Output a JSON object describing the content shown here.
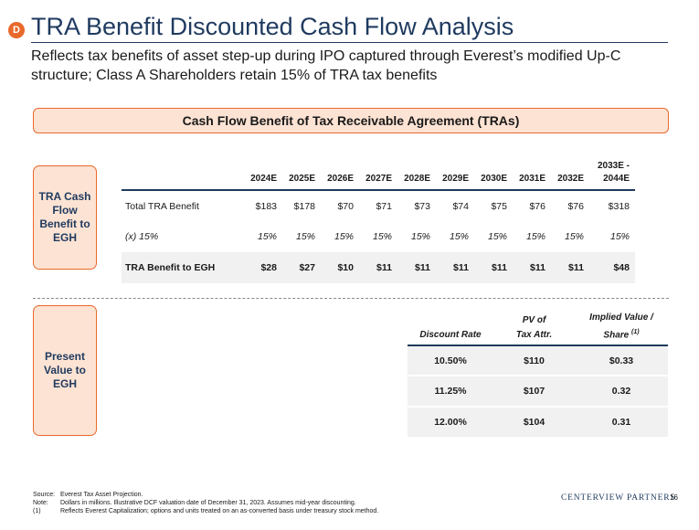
{
  "header": {
    "badge": "D",
    "title": "TRA Benefit Discounted Cash Flow Analysis",
    "subtitle": "Reflects tax benefits of asset step-up during IPO captured through Everest’s modified Up-C structure; Class A Shareholders retain 15% of TRA tax benefits"
  },
  "banner": "Cash Flow Benefit of Tax Receivable Agreement (TRAs)",
  "side_labels": {
    "tra": "TRA Cash Flow Benefit to EGH",
    "pv": "Present Value to EGH"
  },
  "tra_table": {
    "columns": [
      "2024E",
      "2025E",
      "2026E",
      "2027E",
      "2028E",
      "2029E",
      "2030E",
      "2031E",
      "2032E",
      "2033E - 2044E"
    ],
    "rows": [
      {
        "label": "Total TRA Benefit",
        "values": [
          "$183",
          "$178",
          "$70",
          "$71",
          "$73",
          "$74",
          "$75",
          "$76",
          "$76",
          "$318"
        ]
      },
      {
        "label": "(x) 15%",
        "values": [
          "15%",
          "15%",
          "15%",
          "15%",
          "15%",
          "15%",
          "15%",
          "15%",
          "15%",
          "15%"
        ]
      },
      {
        "label": "TRA Benefit to EGH",
        "values": [
          "$28",
          "$27",
          "$10",
          "$11",
          "$11",
          "$11",
          "$11",
          "$11",
          "$11",
          "$48"
        ]
      }
    ]
  },
  "pv_table": {
    "headers": {
      "discount_rate": "Discount Rate",
      "pv_line1": "PV of",
      "pv_line2": "Tax Attr.",
      "implied_line1": "Implied Value /",
      "implied_line2": "Share",
      "implied_sup": "(1)"
    },
    "rows": [
      {
        "rate": "10.50%",
        "pv": "$110",
        "implied": "$0.33"
      },
      {
        "rate": "11.25%",
        "pv": "$107",
        "implied": "0.32"
      },
      {
        "rate": "12.00%",
        "pv": "$104",
        "implied": "0.31"
      }
    ]
  },
  "footnotes": [
    {
      "key": "Source:",
      "text": "Everest Tax Asset Projection."
    },
    {
      "key": "Note:",
      "text": "Dollars in millions. Illustrative DCF valuation date of December 31, 2023. Assumes mid-year discounting."
    },
    {
      "key": "(1)",
      "text": "Reflects Everest Capitalization; options and units treated on an as-converted basis under treasury stock method."
    }
  ],
  "footer": {
    "logo": "CENTERVIEW PARTNERS",
    "page_number": "16"
  },
  "colors": {
    "accent_orange": "#e8692b",
    "light_orange": "#fde3d3",
    "navy": "#1f3a5f",
    "row_gray": "#f1f1f1"
  }
}
